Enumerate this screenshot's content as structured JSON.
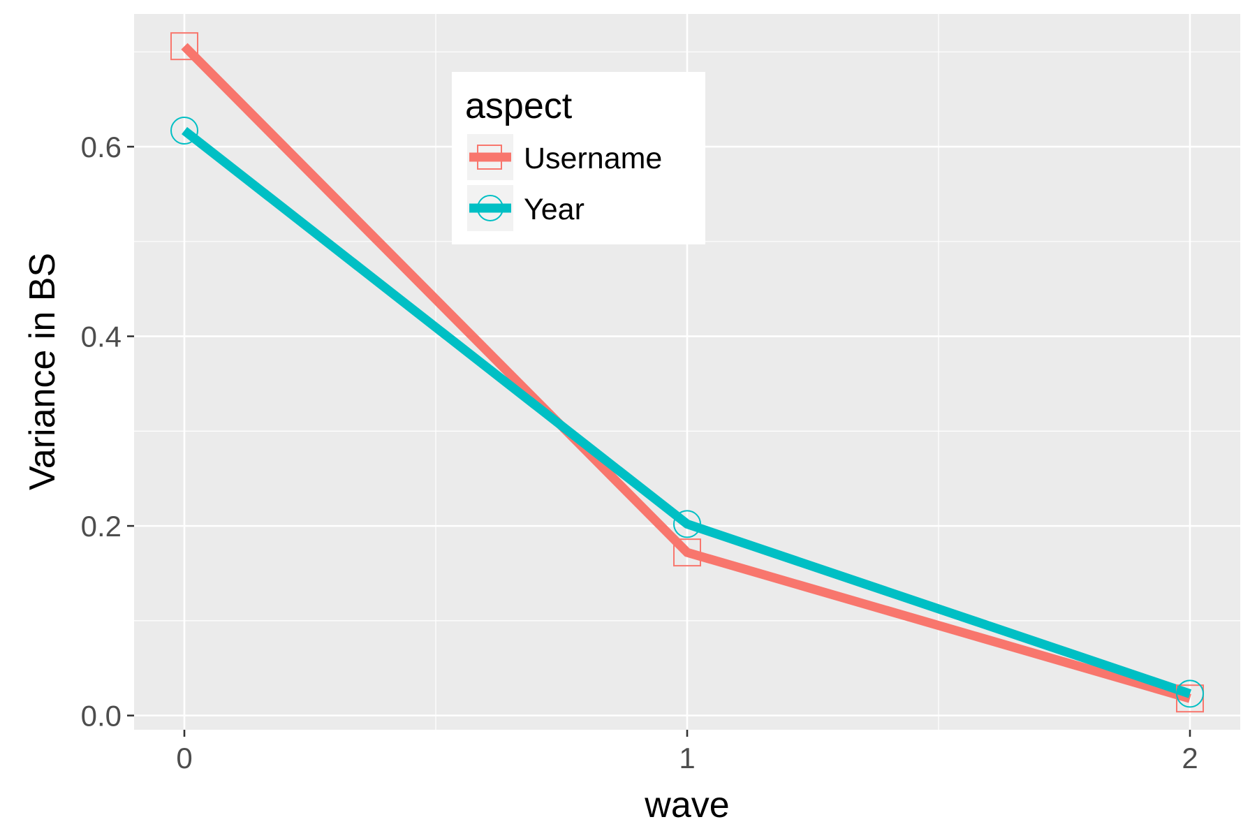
{
  "chart_data": {
    "type": "line",
    "xlabel": "wave",
    "ylabel": "Variance in BS",
    "x": [
      0,
      1,
      2
    ],
    "x_ticks": [
      "0",
      "1",
      "2"
    ],
    "y_ticks": [
      "0.0",
      "0.2",
      "0.4",
      "0.6"
    ],
    "xlim": [
      -0.1,
      2.1
    ],
    "ylim": [
      -0.015,
      0.74
    ],
    "grid": true,
    "legend_position": "inside top-left",
    "legend_title": "aspect",
    "series": [
      {
        "name": "Username",
        "values": [
          0.706,
          0.172,
          0.018
        ],
        "marker": "square",
        "color": "#F8766D"
      },
      {
        "name": "Year",
        "values": [
          0.617,
          0.202,
          0.023
        ],
        "marker": "circle",
        "color": "#00BFC4"
      }
    ],
    "colors": {
      "panel_bg": "#EBEBEB",
      "grid": "#FFFFFF",
      "tick_text": "#4D4D4D",
      "tick_mark": "#333333"
    }
  }
}
